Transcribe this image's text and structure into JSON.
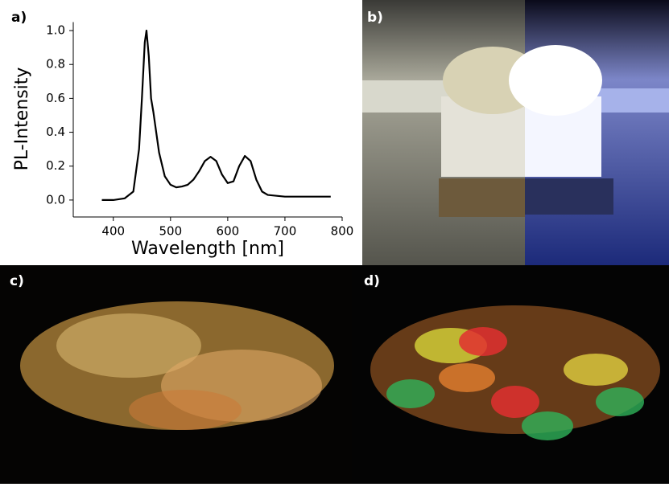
{
  "chart_data": {
    "type": "line",
    "panel_label": "a)",
    "x_label": "Wavelength [nm]",
    "y_label": "PL-Intensity",
    "x": [
      380,
      400,
      420,
      435,
      445,
      450,
      455,
      458,
      462,
      466,
      470,
      475,
      480,
      490,
      500,
      510,
      520,
      530,
      540,
      550,
      560,
      570,
      580,
      590,
      600,
      610,
      620,
      630,
      640,
      650,
      660,
      670,
      700,
      750,
      780
    ],
    "values": [
      0.0,
      0.0,
      0.01,
      0.05,
      0.3,
      0.6,
      0.93,
      1.0,
      0.85,
      0.6,
      0.52,
      0.4,
      0.28,
      0.14,
      0.09,
      0.075,
      0.08,
      0.09,
      0.12,
      0.17,
      0.23,
      0.255,
      0.23,
      0.15,
      0.1,
      0.11,
      0.2,
      0.26,
      0.23,
      0.12,
      0.05,
      0.03,
      0.02,
      0.02,
      0.02
    ],
    "color": "#000000",
    "xlim": [
      330,
      800
    ],
    "ylim": [
      -0.1,
      1.05
    ],
    "xticks": [
      400,
      500,
      600,
      700,
      800
    ],
    "yticks": [
      {
        "value": 0,
        "label": "0.0"
      },
      {
        "value": 0.2,
        "label": "0.2"
      },
      {
        "value": 0.4,
        "label": "0.4"
      },
      {
        "value": 0.6,
        "label": "0.6"
      },
      {
        "value": 0.8,
        "label": "0.8"
      },
      {
        "value": 1,
        "label": "1.0"
      }
    ]
  },
  "panels": [
    {
      "label": "b)"
    },
    {
      "label": "c)"
    },
    {
      "label": "d)"
    }
  ]
}
